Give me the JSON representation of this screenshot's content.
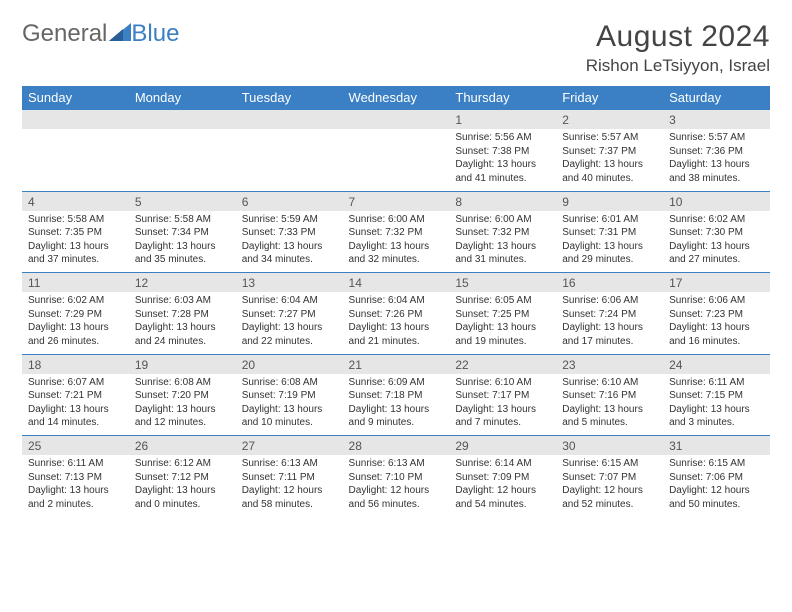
{
  "logo": {
    "part1": "General",
    "part2": "Blue"
  },
  "title": "August 2024",
  "location": "Rishon LeTsiyyon, Israel",
  "colors": {
    "header_bg": "#3b7fc4",
    "header_text": "#ffffff",
    "daynum_bg": "#e6e6e6",
    "cell_bg": "#ffffff",
    "border": "#3b7fc4"
  },
  "day_names": [
    "Sunday",
    "Monday",
    "Tuesday",
    "Wednesday",
    "Thursday",
    "Friday",
    "Saturday"
  ],
  "weeks": [
    [
      null,
      null,
      null,
      null,
      {
        "n": "1",
        "sr": "5:56 AM",
        "ss": "7:38 PM",
        "dl": "13 hours and 41 minutes."
      },
      {
        "n": "2",
        "sr": "5:57 AM",
        "ss": "7:37 PM",
        "dl": "13 hours and 40 minutes."
      },
      {
        "n": "3",
        "sr": "5:57 AM",
        "ss": "7:36 PM",
        "dl": "13 hours and 38 minutes."
      }
    ],
    [
      {
        "n": "4",
        "sr": "5:58 AM",
        "ss": "7:35 PM",
        "dl": "13 hours and 37 minutes."
      },
      {
        "n": "5",
        "sr": "5:58 AM",
        "ss": "7:34 PM",
        "dl": "13 hours and 35 minutes."
      },
      {
        "n": "6",
        "sr": "5:59 AM",
        "ss": "7:33 PM",
        "dl": "13 hours and 34 minutes."
      },
      {
        "n": "7",
        "sr": "6:00 AM",
        "ss": "7:32 PM",
        "dl": "13 hours and 32 minutes."
      },
      {
        "n": "8",
        "sr": "6:00 AM",
        "ss": "7:32 PM",
        "dl": "13 hours and 31 minutes."
      },
      {
        "n": "9",
        "sr": "6:01 AM",
        "ss": "7:31 PM",
        "dl": "13 hours and 29 minutes."
      },
      {
        "n": "10",
        "sr": "6:02 AM",
        "ss": "7:30 PM",
        "dl": "13 hours and 27 minutes."
      }
    ],
    [
      {
        "n": "11",
        "sr": "6:02 AM",
        "ss": "7:29 PM",
        "dl": "13 hours and 26 minutes."
      },
      {
        "n": "12",
        "sr": "6:03 AM",
        "ss": "7:28 PM",
        "dl": "13 hours and 24 minutes."
      },
      {
        "n": "13",
        "sr": "6:04 AM",
        "ss": "7:27 PM",
        "dl": "13 hours and 22 minutes."
      },
      {
        "n": "14",
        "sr": "6:04 AM",
        "ss": "7:26 PM",
        "dl": "13 hours and 21 minutes."
      },
      {
        "n": "15",
        "sr": "6:05 AM",
        "ss": "7:25 PM",
        "dl": "13 hours and 19 minutes."
      },
      {
        "n": "16",
        "sr": "6:06 AM",
        "ss": "7:24 PM",
        "dl": "13 hours and 17 minutes."
      },
      {
        "n": "17",
        "sr": "6:06 AM",
        "ss": "7:23 PM",
        "dl": "13 hours and 16 minutes."
      }
    ],
    [
      {
        "n": "18",
        "sr": "6:07 AM",
        "ss": "7:21 PM",
        "dl": "13 hours and 14 minutes."
      },
      {
        "n": "19",
        "sr": "6:08 AM",
        "ss": "7:20 PM",
        "dl": "13 hours and 12 minutes."
      },
      {
        "n": "20",
        "sr": "6:08 AM",
        "ss": "7:19 PM",
        "dl": "13 hours and 10 minutes."
      },
      {
        "n": "21",
        "sr": "6:09 AM",
        "ss": "7:18 PM",
        "dl": "13 hours and 9 minutes."
      },
      {
        "n": "22",
        "sr": "6:10 AM",
        "ss": "7:17 PM",
        "dl": "13 hours and 7 minutes."
      },
      {
        "n": "23",
        "sr": "6:10 AM",
        "ss": "7:16 PM",
        "dl": "13 hours and 5 minutes."
      },
      {
        "n": "24",
        "sr": "6:11 AM",
        "ss": "7:15 PM",
        "dl": "13 hours and 3 minutes."
      }
    ],
    [
      {
        "n": "25",
        "sr": "6:11 AM",
        "ss": "7:13 PM",
        "dl": "13 hours and 2 minutes."
      },
      {
        "n": "26",
        "sr": "6:12 AM",
        "ss": "7:12 PM",
        "dl": "13 hours and 0 minutes."
      },
      {
        "n": "27",
        "sr": "6:13 AM",
        "ss": "7:11 PM",
        "dl": "12 hours and 58 minutes."
      },
      {
        "n": "28",
        "sr": "6:13 AM",
        "ss": "7:10 PM",
        "dl": "12 hours and 56 minutes."
      },
      {
        "n": "29",
        "sr": "6:14 AM",
        "ss": "7:09 PM",
        "dl": "12 hours and 54 minutes."
      },
      {
        "n": "30",
        "sr": "6:15 AM",
        "ss": "7:07 PM",
        "dl": "12 hours and 52 minutes."
      },
      {
        "n": "31",
        "sr": "6:15 AM",
        "ss": "7:06 PM",
        "dl": "12 hours and 50 minutes."
      }
    ]
  ],
  "labels": {
    "sunrise": "Sunrise:",
    "sunset": "Sunset:",
    "daylight": "Daylight:"
  }
}
